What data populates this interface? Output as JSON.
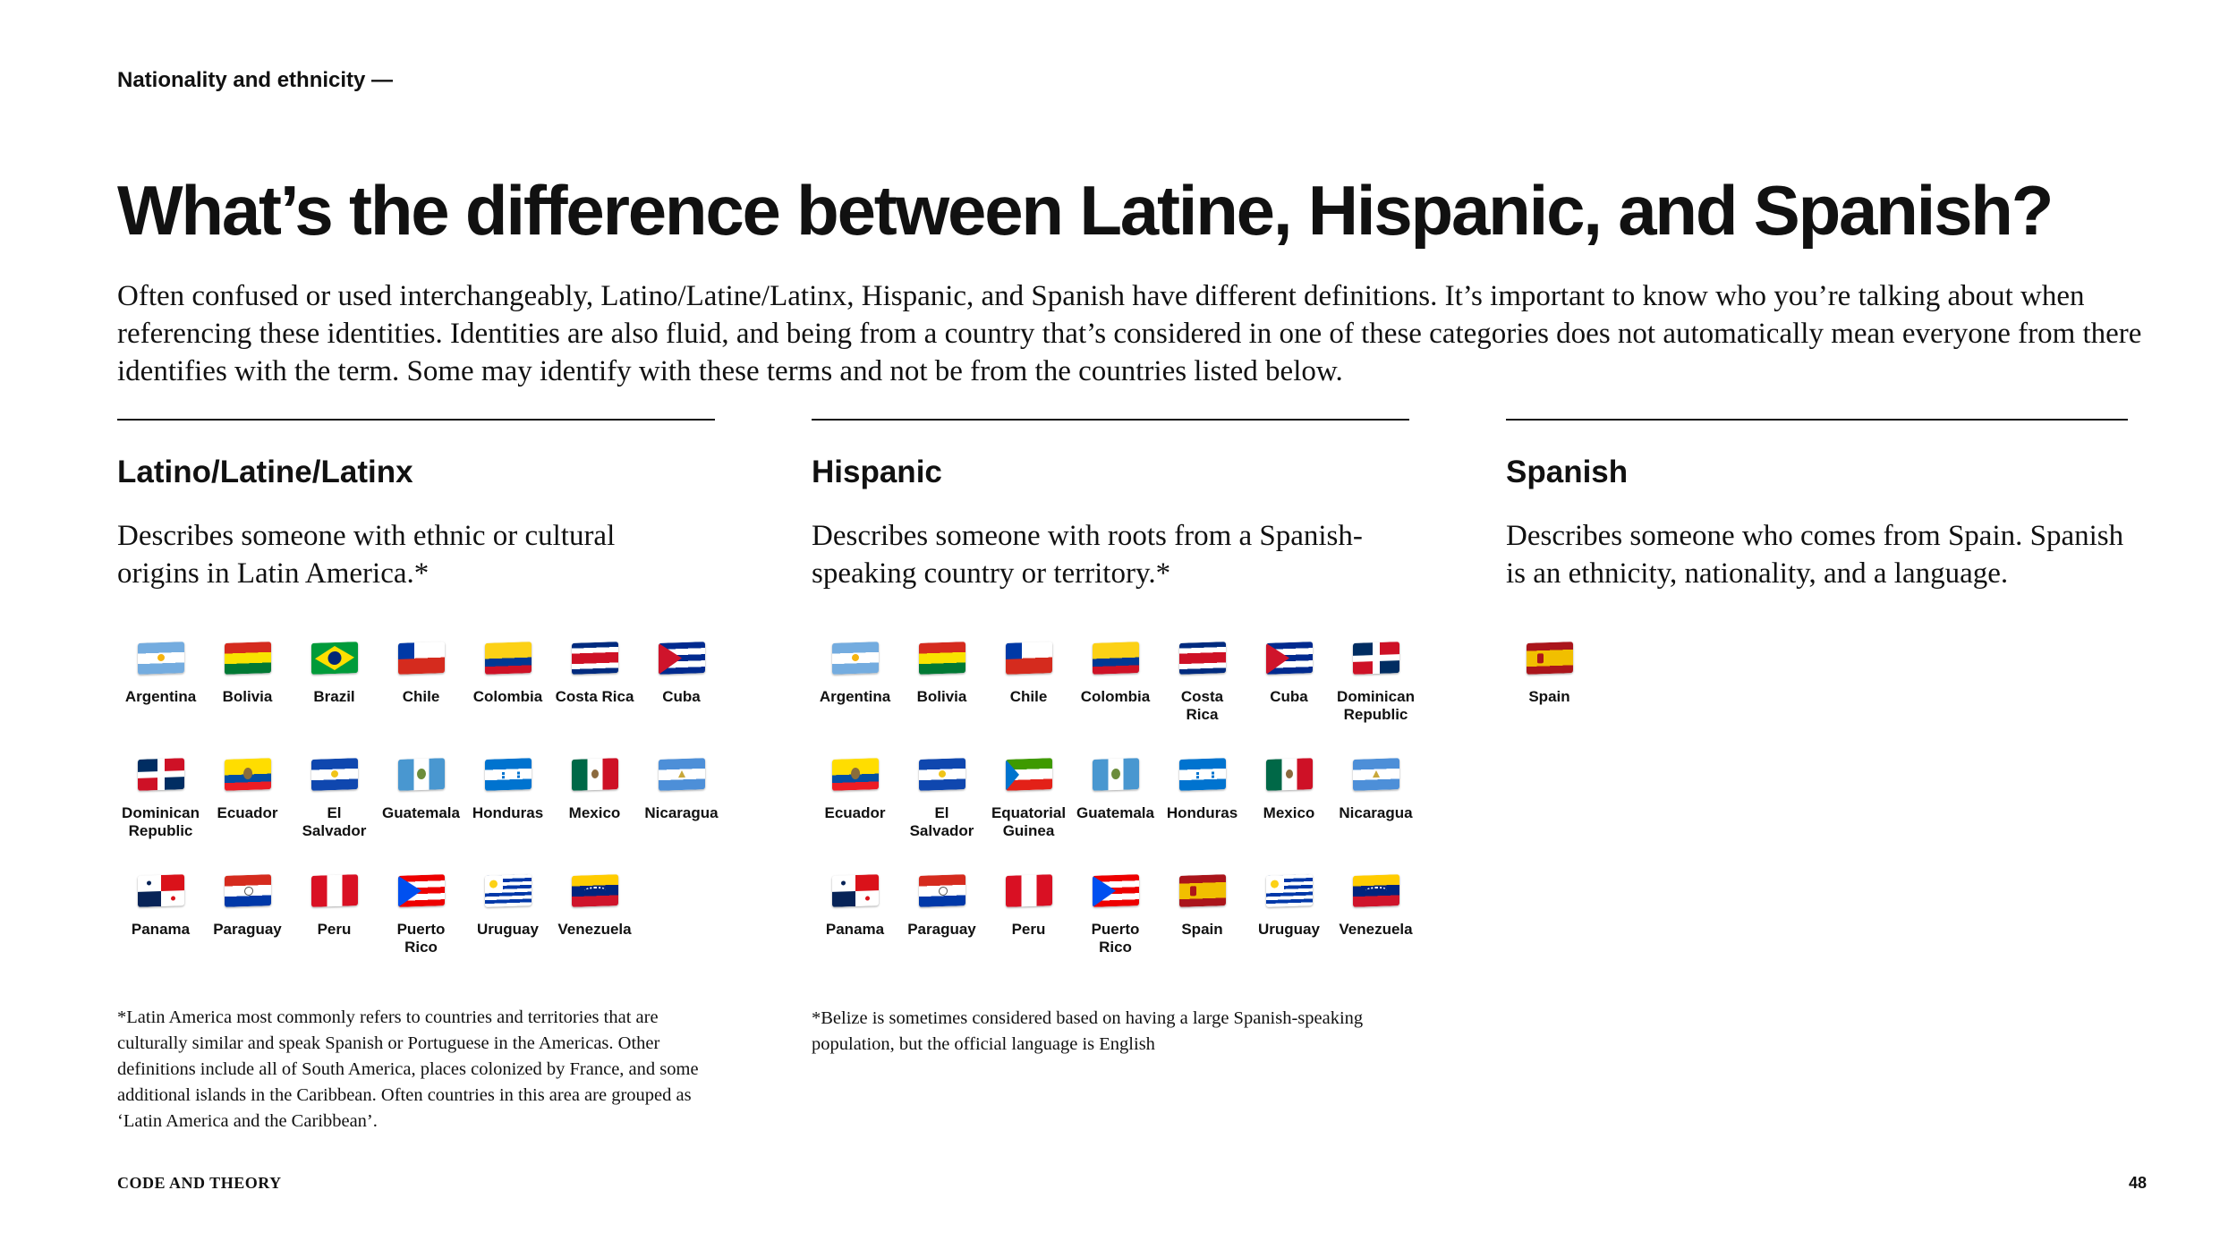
{
  "header": {
    "eyebrow": "Nationality and ethnicity —"
  },
  "title": "What’s the difference between Latine, Hispanic, and Spanish?",
  "intro": "Often confused or used interchangeably, Latino/Latine/Latinx, Hispanic, and Spanish have different definitions. It’s important to know who you’re talking about when referencing these identities. Identities are also fluid, and being from a country that’s considered in one of these categories does not automatically mean everyone from there identifies with the term. Some may identify with these terms and not be from the countries listed below.",
  "columns": [
    {
      "heading": "Latino/Latine/Latinx",
      "description": "Describes someone with ethnic or cultural origins in Latin America.*",
      "countries": [
        {
          "name": "Argentina",
          "flag": "argentina-flag-icon"
        },
        {
          "name": "Bolivia",
          "flag": "bolivia-flag-icon"
        },
        {
          "name": "Brazil",
          "flag": "brazil-flag-icon"
        },
        {
          "name": "Chile",
          "flag": "chile-flag-icon"
        },
        {
          "name": "Colombia",
          "flag": "colombia-flag-icon"
        },
        {
          "name": "Costa Rica",
          "flag": "costa-rica-flag-icon"
        },
        {
          "name": "Cuba",
          "flag": "cuba-flag-icon"
        },
        {
          "name": "Dominican\nRepublic",
          "flag": "dominican-republic-flag-icon"
        },
        {
          "name": "Ecuador",
          "flag": "ecuador-flag-icon"
        },
        {
          "name": "El\nSalvador",
          "flag": "el-salvador-flag-icon"
        },
        {
          "name": "Guatemala",
          "flag": "guatemala-flag-icon"
        },
        {
          "name": "Honduras",
          "flag": "honduras-flag-icon"
        },
        {
          "name": "Mexico",
          "flag": "mexico-flag-icon"
        },
        {
          "name": "Nicaragua",
          "flag": "nicaragua-flag-icon"
        },
        {
          "name": "Panama",
          "flag": "panama-flag-icon"
        },
        {
          "name": "Paraguay",
          "flag": "paraguay-flag-icon"
        },
        {
          "name": "Peru",
          "flag": "peru-flag-icon"
        },
        {
          "name": "Puerto\nRico",
          "flag": "puerto-rico-flag-icon"
        },
        {
          "name": "Uruguay",
          "flag": "uruguay-flag-icon"
        },
        {
          "name": "Venezuela",
          "flag": "venezuela-flag-icon"
        }
      ],
      "footnote": "*Latin America most commonly refers to countries and territories that are culturally similar and speak Spanish or Portuguese in the Americas. Other definitions include all of South America, places colonized by France, and some additional islands in the Caribbean. Often countries in this area are grouped as ‘Latin America and the Caribbean’."
    },
    {
      "heading": "Hispanic",
      "description": "Describes someone with roots from a Spanish-speaking country or territory.*",
      "countries": [
        {
          "name": "Argentina",
          "flag": "argentina-flag-icon"
        },
        {
          "name": "Bolivia",
          "flag": "bolivia-flag-icon"
        },
        {
          "name": "Chile",
          "flag": "chile-flag-icon"
        },
        {
          "name": "Colombia",
          "flag": "colombia-flag-icon"
        },
        {
          "name": "Costa\nRica",
          "flag": "costa-rica-flag-icon"
        },
        {
          "name": "Cuba",
          "flag": "cuba-flag-icon"
        },
        {
          "name": "Dominican\nRepublic",
          "flag": "dominican-republic-flag-icon"
        },
        {
          "name": "Ecuador",
          "flag": "ecuador-flag-icon"
        },
        {
          "name": "El\nSalvador",
          "flag": "el-salvador-flag-icon"
        },
        {
          "name": "Equatorial\nGuinea",
          "flag": "equatorial-guinea-flag-icon"
        },
        {
          "name": "Guatemala",
          "flag": "guatemala-flag-icon"
        },
        {
          "name": "Honduras",
          "flag": "honduras-flag-icon"
        },
        {
          "name": "Mexico",
          "flag": "mexico-flag-icon"
        },
        {
          "name": "Nicaragua",
          "flag": "nicaragua-flag-icon"
        },
        {
          "name": "Panama",
          "flag": "panama-flag-icon"
        },
        {
          "name": "Paraguay",
          "flag": "paraguay-flag-icon"
        },
        {
          "name": "Peru",
          "flag": "peru-flag-icon"
        },
        {
          "name": "Puerto\nRico",
          "flag": "puerto-rico-flag-icon"
        },
        {
          "name": "Spain",
          "flag": "spain-flag-icon"
        },
        {
          "name": "Uruguay",
          "flag": "uruguay-flag-icon"
        },
        {
          "name": "Venezuela",
          "flag": "venezuela-flag-icon"
        }
      ],
      "footnote": "*Belize is sometimes considered based on having a large Spanish-speaking population, but the official language is English"
    },
    {
      "heading": "Spanish",
      "description": "Describes someone who comes from Spain. Spanish is an ethnicity, nationality, and a language.",
      "countries": [
        {
          "name": "Spain",
          "flag": "spain-flag-icon"
        }
      ]
    }
  ],
  "footer": {
    "brand": "CODE AND THEORY",
    "page_number": "48"
  }
}
